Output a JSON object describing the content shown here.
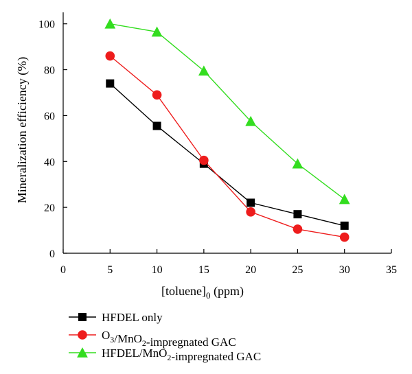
{
  "chart_data": {
    "type": "line",
    "title": "",
    "xlabel": "[toluene]",
    "xlabel_subscript": "0",
    "xlabel_unit": " (ppm)",
    "ylabel": "Mineralization efficiency (%)",
    "xlim": [
      0,
      35
    ],
    "ylim": [
      0,
      105
    ],
    "xticks": [
      0,
      5,
      10,
      15,
      20,
      25,
      30,
      35
    ],
    "yticks": [
      0,
      20,
      40,
      60,
      80,
      100
    ],
    "grid": false,
    "legend_position": "bottom-left",
    "x": [
      5,
      10,
      15,
      20,
      25,
      30
    ],
    "series": [
      {
        "name": "HFDEL only",
        "name_parts": [
          {
            "t": "HFDEL only"
          }
        ],
        "color": "#000000",
        "marker": "square",
        "values": [
          74,
          55.5,
          39,
          22,
          17,
          12
        ]
      },
      {
        "name": "O3/MnO2-impregnated GAC",
        "name_parts": [
          {
            "t": "O"
          },
          {
            "t": "3",
            "sub": true
          },
          {
            "t": "/MnO"
          },
          {
            "t": "2",
            "sub": true
          },
          {
            "t": "-impregnated GAC"
          }
        ],
        "color": "#ee1c1c",
        "marker": "circle",
        "values": [
          86,
          69,
          40.5,
          18,
          10.5,
          7
        ]
      },
      {
        "name": "HFDEL/MnO2-impregnated GAC",
        "name_parts": [
          {
            "t": "HFDEL/MnO"
          },
          {
            "t": "2",
            "sub": true
          },
          {
            "t": "-impregnated GAC"
          }
        ],
        "color": "#33dd1f",
        "marker": "triangle",
        "values": [
          100,
          96.5,
          79.5,
          57.5,
          39,
          23.5
        ]
      }
    ]
  }
}
